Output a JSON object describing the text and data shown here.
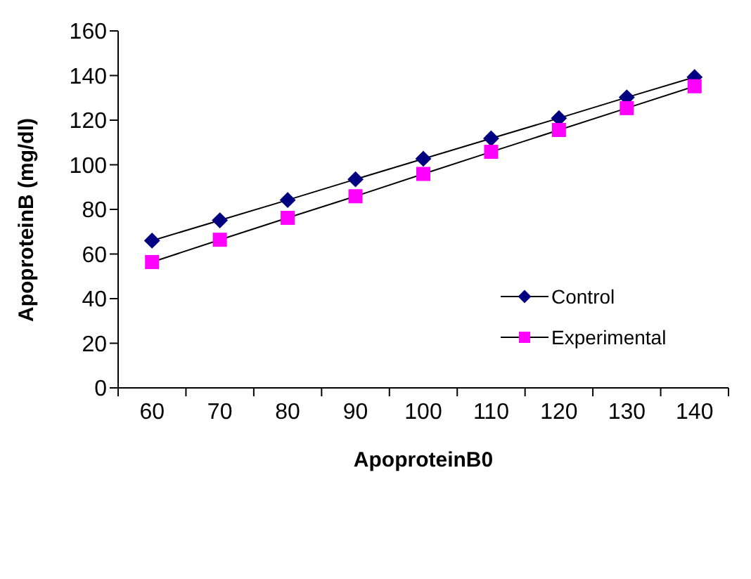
{
  "chart_data": {
    "type": "line",
    "xlabel": "ApoproteinB0",
    "ylabel": "ApoproteinB (mg/dl)",
    "categories": [
      "60",
      "70",
      "80",
      "90",
      "100",
      "110",
      "120",
      "130",
      "140"
    ],
    "series": [
      {
        "name": "Control",
        "color": "#000080",
        "marker": "diamond",
        "values": [
          66,
          75.1,
          84.2,
          93.5,
          102.7,
          111.8,
          120.9,
          130.2,
          139.3
        ]
      },
      {
        "name": "Experimental",
        "color": "#ff00ff",
        "marker": "square",
        "values": [
          56.4,
          66.4,
          76.2,
          85.9,
          95.9,
          105.8,
          115.6,
          125.4,
          135.2
        ]
      }
    ],
    "ylim": [
      0,
      160
    ],
    "yticks": [
      0,
      20,
      40,
      60,
      80,
      100,
      120,
      140,
      160
    ],
    "legend": "bottom right",
    "line_style": "solid"
  }
}
